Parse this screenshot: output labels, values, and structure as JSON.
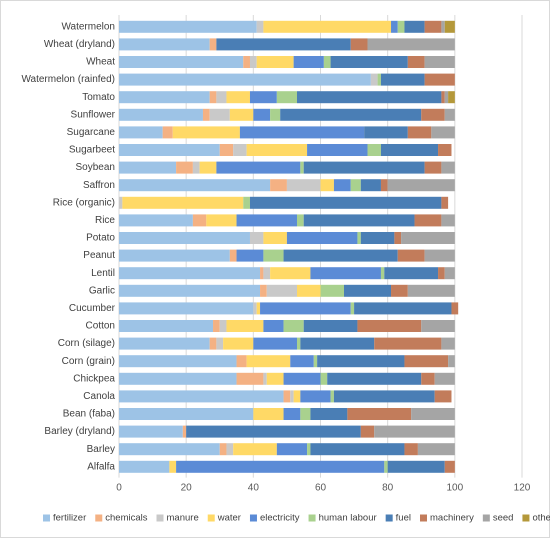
{
  "chart_data": {
    "type": "bar",
    "orientation": "horizontal",
    "stacked": true,
    "title": "",
    "xlabel": "",
    "ylabel": "",
    "xlim": [
      0,
      120
    ],
    "xticks": [
      0,
      20,
      40,
      60,
      80,
      100,
      120
    ],
    "grid": true,
    "legend_position": "bottom",
    "categories": [
      "Watermelon",
      "Wheat (dryland)",
      "Wheat",
      "Watermelon (rainfed)",
      "Tomato",
      "Sunflower",
      "Sugarcane",
      "Sugarbeet",
      "Soybean",
      "Saffron",
      "Rice (organic)",
      "Rice",
      "Potato",
      "Peanut",
      "Lentil",
      "Garlic",
      "Cucumber",
      "Cotton",
      "Corn (silage)",
      "Corn (grain)",
      "Chickpea",
      "Canola",
      "Bean (faba)",
      "Barley (dryland)",
      "Barley",
      "Alfalfa"
    ],
    "series": [
      {
        "name": "fertilizer",
        "color": "#9dc3e6",
        "values": [
          41,
          27,
          37,
          75,
          27,
          25,
          13,
          30,
          17,
          45,
          0,
          22,
          39,
          33,
          42,
          42,
          40,
          28,
          27,
          35,
          35,
          49,
          40,
          19,
          30,
          15
        ]
      },
      {
        "name": "chemicals",
        "color": "#f4b183",
        "values": [
          0,
          2,
          2,
          0,
          2,
          2,
          3,
          4,
          5,
          5,
          0,
          4,
          0,
          2,
          1,
          2,
          0,
          2,
          2,
          3,
          8,
          2,
          0,
          1,
          2,
          0
        ]
      },
      {
        "name": "manure",
        "color": "#c9c9c9",
        "values": [
          2,
          0,
          2,
          2,
          3,
          6,
          0,
          4,
          2,
          10,
          1,
          0,
          4,
          0,
          2,
          9,
          1,
          2,
          2,
          0,
          1,
          1,
          0,
          0,
          2,
          0
        ]
      },
      {
        "name": "water",
        "color": "#ffd966",
        "values": [
          38,
          0,
          11,
          0,
          7,
          7,
          20,
          18,
          5,
          4,
          36,
          9,
          7,
          0,
          12,
          7,
          1,
          11,
          9,
          13,
          5,
          2,
          9,
          0,
          13,
          2
        ]
      },
      {
        "name": "electricity",
        "color": "#5b8bd6",
        "values": [
          2,
          0,
          9,
          0,
          8,
          5,
          37,
          18,
          25,
          5,
          0,
          18,
          21,
          8,
          21,
          0,
          27,
          6,
          13,
          7,
          11,
          9,
          5,
          0,
          9,
          62
        ]
      },
      {
        "name": "human labour",
        "color": "#a9d18e",
        "values": [
          2,
          0,
          2,
          1,
          6,
          3,
          0,
          4,
          1,
          3,
          2,
          2,
          1,
          6,
          1,
          7,
          1,
          6,
          1,
          1,
          2,
          1,
          3,
          0,
          1,
          1
        ]
      },
      {
        "name": "fuel",
        "color": "#4a7eb5",
        "values": [
          6,
          40,
          23,
          13,
          43,
          42,
          13,
          17,
          36,
          6,
          57,
          33,
          10,
          34,
          16,
          14,
          29,
          16,
          22,
          26,
          28,
          30,
          11,
          52,
          28,
          17
        ]
      },
      {
        "name": "machinery",
        "color": "#c27c5b",
        "values": [
          5,
          5,
          5,
          9,
          1,
          7,
          7,
          4,
          5,
          2,
          2,
          8,
          2,
          8,
          2,
          5,
          2,
          19,
          20,
          13,
          4,
          5,
          19,
          4,
          4,
          3
        ]
      },
      {
        "name": "seed",
        "color": "#a5a5a5",
        "values": [
          1,
          26,
          9,
          0,
          1,
          3,
          7,
          0,
          4,
          20,
          0,
          4,
          16,
          9,
          3,
          14,
          0,
          10,
          4,
          2,
          6,
          0,
          13,
          24,
          11,
          0
        ]
      },
      {
        "name": "others",
        "color": "#b4983a",
        "values": [
          3,
          0,
          0,
          0,
          2,
          0,
          0,
          0,
          0,
          0,
          0,
          0,
          0,
          0,
          0,
          0,
          0,
          0,
          0,
          0,
          0,
          0,
          0,
          0,
          0,
          0
        ]
      }
    ]
  }
}
